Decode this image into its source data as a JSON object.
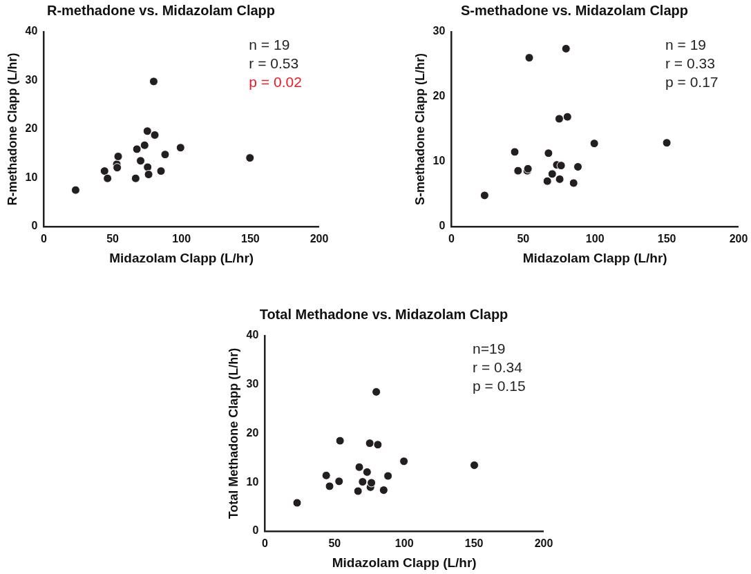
{
  "chart_data": [
    {
      "type": "scatter",
      "title": "R-methadone vs. Midazolam Clapp",
      "xlabel": "Midazolam Clapp (L/hr)",
      "ylabel": "R-methadone Clapp (L/hr)",
      "marker": "circle",
      "grid": false,
      "color": "#231f20",
      "xlim": [
        0,
        200
      ],
      "ylim": [
        0,
        40
      ],
      "xticks": [
        0,
        50,
        100,
        150,
        200
      ],
      "yticks": [
        0,
        10,
        20,
        30,
        40
      ],
      "x": [
        23.1,
        44.1,
        46.3,
        53,
        53.3,
        54,
        66.7,
        67.6,
        70.3,
        73.2,
        75.2,
        75.4,
        76.1,
        79.8,
        80.6,
        85.1,
        88.1,
        99.3,
        149.7
      ],
      "values": [
        7.5,
        11.4,
        9.9,
        12.8,
        12.1,
        14.4,
        9.9,
        15.9,
        13.5,
        16.7,
        19.6,
        12.2,
        10.7,
        29.8,
        18.8,
        11.4,
        14.8,
        16.2,
        14.1
      ],
      "annotations": [
        "n = 19",
        "r = 0.53",
        "p = 0.02"
      ]
    },
    {
      "type": "scatter",
      "title": "S-methadone vs. Midazolam Clapp",
      "xlabel": "Midazolam Clapp (L/hr)",
      "ylabel": "S-methadone Clapp (L/hr)",
      "marker": "circle",
      "grid": false,
      "color": "#231f20",
      "xlim": [
        0,
        200
      ],
      "ylim": [
        0,
        30
      ],
      "xticks": [
        0,
        50,
        100,
        150,
        200
      ],
      "yticks": [
        0,
        10,
        20,
        30
      ],
      "x": [
        23.1,
        44.1,
        46.4,
        52.8,
        53.3,
        54.2,
        66.8,
        67.6,
        70.2,
        73.4,
        75.1,
        75.4,
        76.4,
        79.8,
        80.8,
        85.1,
        88.1,
        99.5,
        150
      ],
      "values": [
        4.8,
        11.5,
        8.6,
        8.6,
        8.9,
        26,
        7,
        11.3,
        8.1,
        9.5,
        16.6,
        7.3,
        9.4,
        27.4,
        16.9,
        6.7,
        9.2,
        12.8,
        12.9
      ],
      "annotations": [
        "n = 19",
        "r = 0.33",
        "p = 0.17"
      ]
    },
    {
      "type": "scatter",
      "title": "Total Methadone vs. Midazolam Clapp",
      "xlabel": "Midazolam Clapp (L/hr)",
      "ylabel": "Total Methadone Clapp (L/hr)",
      "marker": "circle",
      "grid": false,
      "color": "#231f20",
      "xlim": [
        0,
        200
      ],
      "ylim": [
        0,
        40
      ],
      "xticks": [
        0,
        50,
        100,
        150,
        200
      ],
      "yticks": [
        0,
        10,
        20,
        30,
        40
      ],
      "x": [
        23.1,
        44,
        46.4,
        53.2,
        53.9,
        66.8,
        67.7,
        70.1,
        73.3,
        75.2,
        75.7,
        76.4,
        79.9,
        81,
        85.2,
        88.3,
        99.7,
        150.2
      ],
      "values": [
        5.8,
        11.4,
        9.2,
        10.2,
        18.5,
        8.2,
        13.1,
        10.1,
        12.1,
        18,
        9,
        9.9,
        28.5,
        17.7,
        8.4,
        11.3,
        14.3,
        13.5
      ],
      "annotations": [
        "n=19",
        "r = 0.34",
        "p = 0.15"
      ]
    }
  ]
}
